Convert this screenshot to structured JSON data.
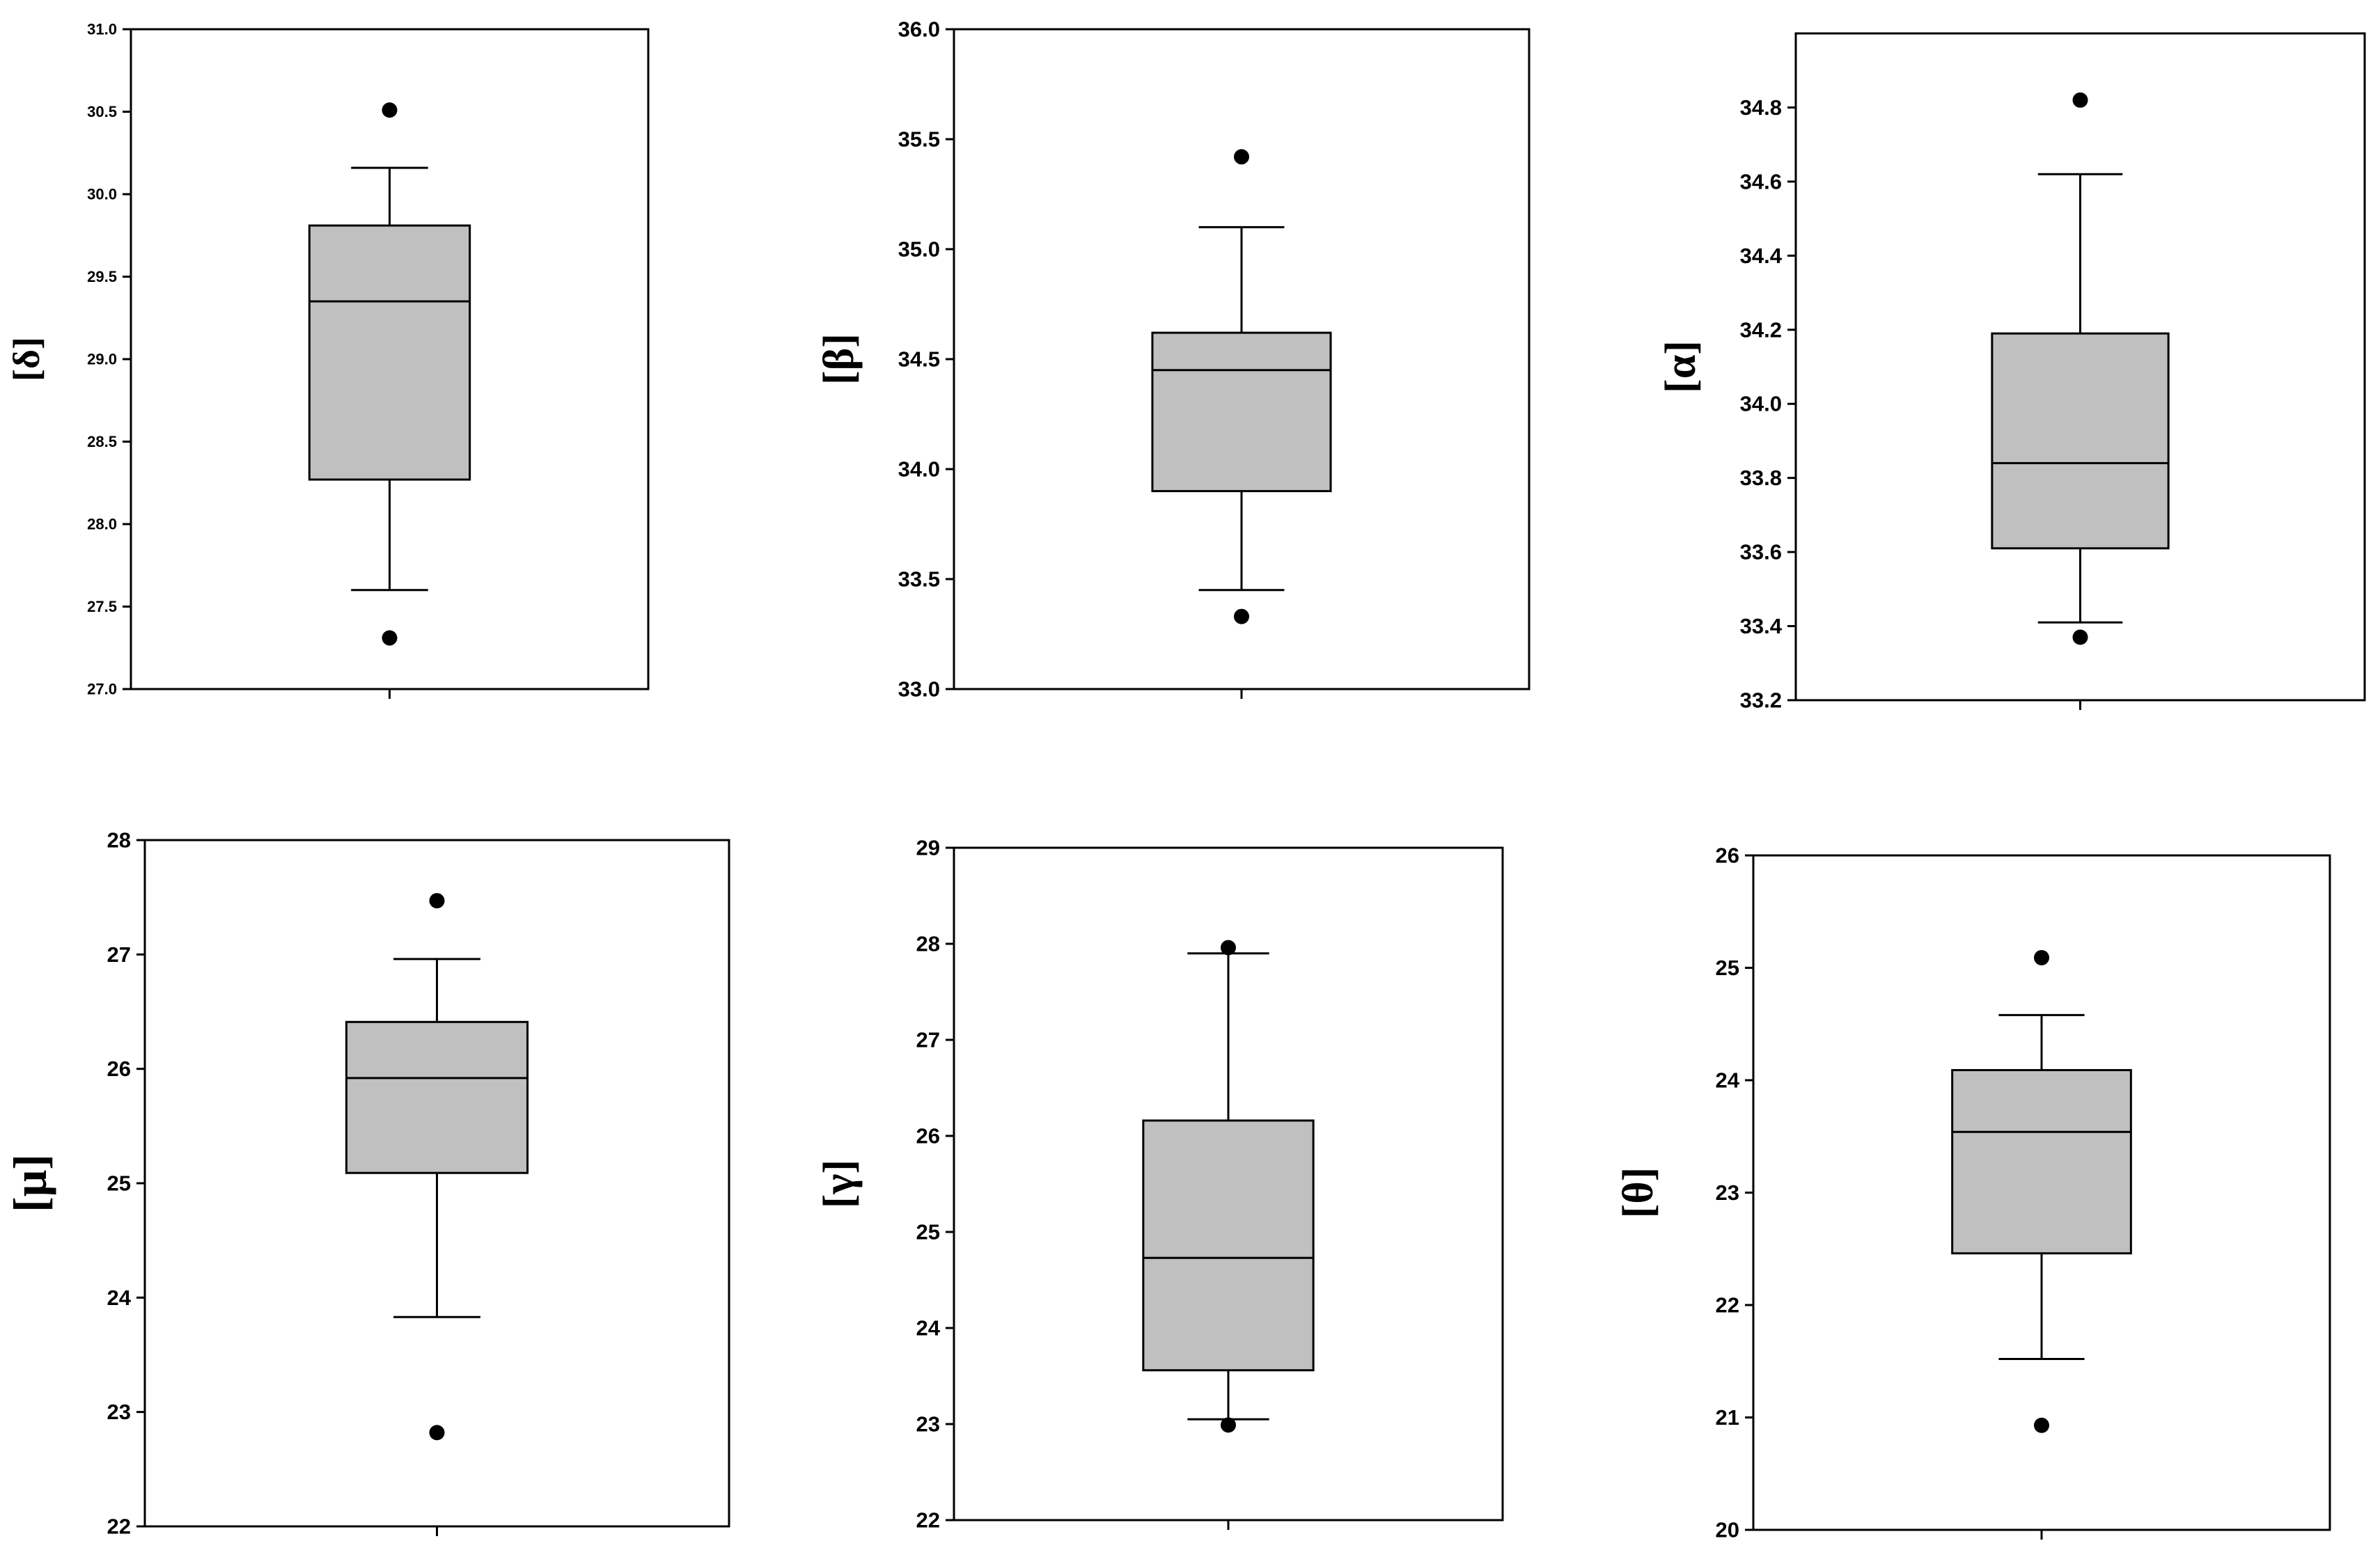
{
  "chart_data": [
    {
      "type": "box",
      "ylabel": "[δ]",
      "ylim": [
        27.0,
        31.0
      ],
      "yticks": [
        "27.0",
        "27.5",
        "28.0",
        "28.5",
        "29.0",
        "29.5",
        "30.0",
        "30.5",
        "31.0"
      ],
      "box": {
        "whisker_low": 27.6,
        "q1": 28.27,
        "median": 29.35,
        "q3": 29.81,
        "whisker_high": 30.16
      },
      "outliers": [
        30.51,
        27.31
      ],
      "colors": {
        "box_fill": "#c0c0c0",
        "line": "#000000"
      }
    },
    {
      "type": "box",
      "ylabel": "[β]",
      "ylim": [
        33.0,
        36.0
      ],
      "yticks": [
        "33.0",
        "33.5",
        "34.0",
        "34.5",
        "35.0",
        "35.5",
        "36.0"
      ],
      "box": {
        "whisker_low": 33.45,
        "q1": 33.9,
        "median": 34.45,
        "q3": 34.62,
        "whisker_high": 35.1
      },
      "outliers": [
        35.42,
        33.33
      ],
      "colors": {
        "box_fill": "#c0c0c0",
        "line": "#000000"
      }
    },
    {
      "type": "box",
      "ylabel": "[α]",
      "ylim": [
        33.2,
        35.0
      ],
      "yticks": [
        "33.2",
        "33.4",
        "33.6",
        "33.8",
        "34.0",
        "34.2",
        "34.4",
        "34.6",
        "34.8"
      ],
      "box": {
        "whisker_low": 33.41,
        "q1": 33.61,
        "median": 33.84,
        "q3": 34.19,
        "whisker_high": 34.62
      },
      "outliers": [
        34.82,
        33.37
      ],
      "colors": {
        "box_fill": "#c0c0c0",
        "line": "#000000"
      }
    },
    {
      "type": "box",
      "ylabel": "[μ]",
      "ylim": [
        22,
        28
      ],
      "yticks": [
        "22",
        "23",
        "24",
        "25",
        "26",
        "27",
        "28"
      ],
      "box": {
        "whisker_low": 23.83,
        "q1": 25.09,
        "median": 25.92,
        "q3": 26.41,
        "whisker_high": 26.96
      },
      "outliers": [
        27.47,
        22.82
      ],
      "colors": {
        "box_fill": "#c0c0c0",
        "line": "#000000"
      }
    },
    {
      "type": "box",
      "ylabel": "[γ]",
      "ylim": [
        22,
        29
      ],
      "yticks": [
        "22",
        "23",
        "24",
        "25",
        "26",
        "27",
        "28",
        "29"
      ],
      "box": {
        "whisker_low": 23.05,
        "q1": 23.56,
        "median": 24.73,
        "q3": 26.16,
        "whisker_high": 27.9
      },
      "outliers": [
        27.96,
        22.99
      ],
      "colors": {
        "box_fill": "#c0c0c0",
        "line": "#000000"
      }
    },
    {
      "type": "box",
      "ylabel": "[θ]",
      "ylim": [
        20,
        26
      ],
      "yticks": [
        "20",
        "21",
        "22",
        "23",
        "24",
        "25",
        "26"
      ],
      "box": {
        "whisker_low": 21.52,
        "q1": 22.46,
        "median": 23.54,
        "q3": 24.09,
        "whisker_high": 24.58
      },
      "outliers": [
        25.09,
        20.93
      ],
      "colors": {
        "box_fill": "#c0c0c0",
        "line": "#000000"
      }
    }
  ]
}
